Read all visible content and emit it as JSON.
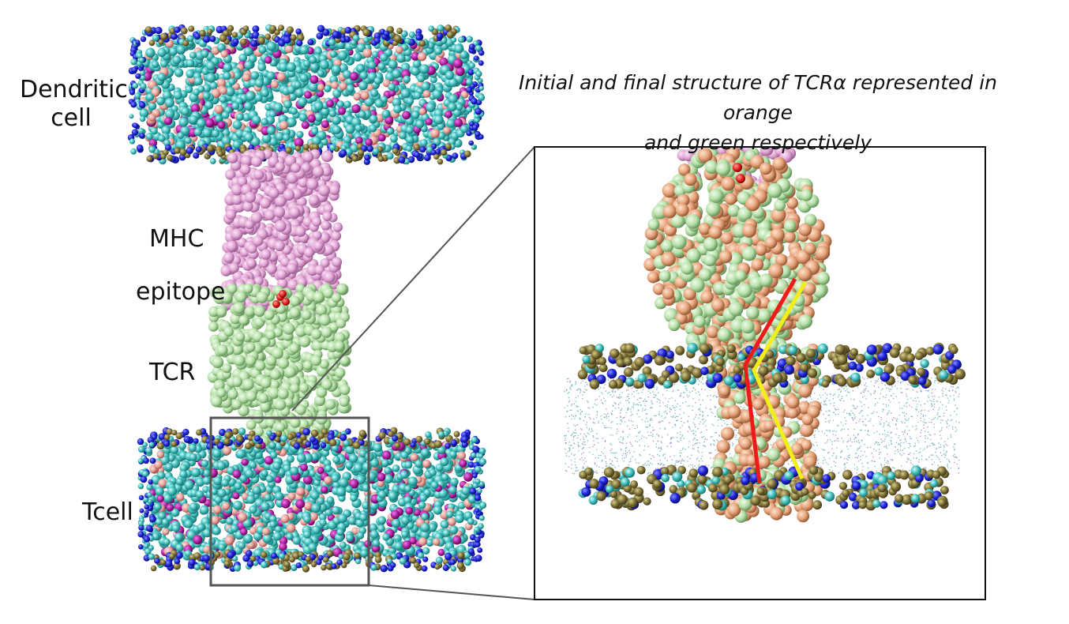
{
  "labels": {
    "dendritic_line1": "Dendritic",
    "dendritic_line2": "cell",
    "mhc": "MHC",
    "epitope": "epitope",
    "tcr": "TCR",
    "tcell": "Tcell"
  },
  "caption": {
    "line1": "Initial and final structure of TCRα represented in orange",
    "line2": "and green respectively"
  },
  "colors": {
    "lipid_tail": "#43c2c0",
    "headgroup_blue": "#1a22d8",
    "headgroup_olive": "#7d7038",
    "mhc": "#e3a6d6",
    "tcr": "#b6e0a8",
    "tcr_initial_orange": "#e7a37a",
    "epitope": "#e01818",
    "line_red": "#ee1a1a",
    "line_yellow": "#f2ee1a",
    "frame": "#555555"
  },
  "icons": [
    "membrane-bilayer-render",
    "protein-complex-render",
    "zoom-inset-render"
  ]
}
